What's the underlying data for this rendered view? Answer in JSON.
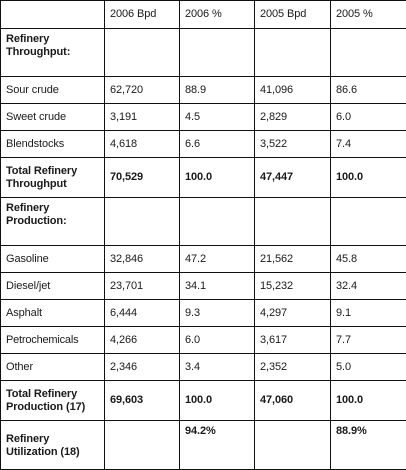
{
  "table": {
    "columns": [
      "",
      "2006 Bpd",
      "2006 %",
      "2005 Bpd",
      "2005 %"
    ],
    "rows": [
      {
        "kind": "section",
        "cells": [
          "Refinery Throughput:",
          "",
          "",
          "",
          ""
        ]
      },
      {
        "kind": "data",
        "cells": [
          "Sour crude",
          "62,720",
          "88.9",
          "41,096",
          "86.6"
        ]
      },
      {
        "kind": "data",
        "cells": [
          "Sweet crude",
          "3,191",
          "4.5",
          "2,829",
          "6.0"
        ]
      },
      {
        "kind": "data",
        "cells": [
          "Blendstocks",
          "4,618",
          "6.6",
          "3,522",
          "7.4"
        ]
      },
      {
        "kind": "total",
        "cells": [
          "Total Refinery Throughput",
          "70,529",
          "100.0",
          "47,447",
          "100.0"
        ]
      },
      {
        "kind": "section",
        "cells": [
          "Refinery Production:",
          "",
          "",
          "",
          ""
        ]
      },
      {
        "kind": "data",
        "cells": [
          "Gasoline",
          "32,846",
          "47.2",
          "21,562",
          "45.8"
        ]
      },
      {
        "kind": "data",
        "cells": [
          "Diesel/jet",
          "23,701",
          "34.1",
          "15,232",
          "32.4"
        ]
      },
      {
        "kind": "data",
        "cells": [
          "Asphalt",
          "6,444",
          "9.3",
          "4,297",
          "9.1"
        ]
      },
      {
        "kind": "data",
        "cells": [
          "Petrochemicals",
          "4,266",
          "6.0",
          "3,617",
          "7.7"
        ]
      },
      {
        "kind": "data",
        "cells": [
          "Other",
          "2,346",
          "3.4",
          "2,352",
          "5.0"
        ]
      },
      {
        "kind": "total",
        "cells": [
          "Total Refinery Production (17)",
          "69,603",
          "100.0",
          "47,060",
          "100.0"
        ]
      },
      {
        "kind": "util",
        "cells": [
          "Refinery Utilization (18)",
          "",
          "94.2%",
          "",
          "88.9%"
        ]
      }
    ]
  },
  "colors": {
    "border": "#111111",
    "text": "#1a1a1a",
    "background": "#ffffff"
  }
}
